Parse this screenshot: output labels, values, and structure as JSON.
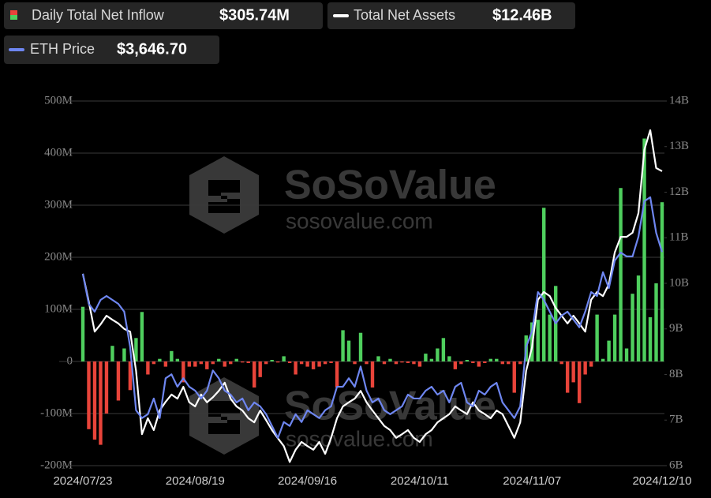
{
  "chart_data": {
    "type": "bar",
    "watermark": [
      "SoSoValue",
      "sosovalue.com"
    ],
    "categories": [
      "2024/07/23",
      null,
      null,
      null,
      null,
      null,
      null,
      null,
      null,
      null,
      null,
      null,
      null,
      null,
      null,
      null,
      null,
      null,
      null,
      "2024/08/19",
      null,
      null,
      null,
      null,
      null,
      null,
      null,
      null,
      null,
      null,
      null,
      null,
      null,
      null,
      null,
      null,
      null,
      null,
      "2024/09/16",
      null,
      null,
      null,
      null,
      null,
      null,
      null,
      null,
      null,
      null,
      null,
      null,
      null,
      null,
      null,
      null,
      null,
      null,
      "2024/10/11",
      null,
      null,
      null,
      null,
      null,
      null,
      null,
      null,
      null,
      null,
      null,
      null,
      null,
      null,
      null,
      null,
      null,
      null,
      "2024/11/07",
      null,
      null,
      null,
      null,
      null,
      null,
      null,
      null,
      null,
      null,
      null,
      null,
      null,
      null,
      null,
      null,
      null,
      null,
      null,
      null,
      null,
      "2024/12/10"
    ],
    "series": [
      {
        "name": "Daily Total Net Inflow",
        "type": "bar",
        "latest_label": "$305.74M",
        "color": "#4fcf5e",
        "negative_color": "#e8443a",
        "values": [
          105,
          -130,
          -150,
          -160,
          -100,
          30,
          -75,
          25,
          -55,
          45,
          95,
          -25,
          -5,
          5,
          -10,
          20,
          5,
          -40,
          -10,
          -10,
          -5,
          -15,
          -5,
          5,
          -10,
          -5,
          5,
          -2,
          -3,
          -50,
          -30,
          -5,
          3,
          -2,
          10,
          -3,
          -25,
          -5,
          -10,
          -15,
          -10,
          -5,
          -3,
          -50,
          60,
          40,
          -5,
          55,
          -5,
          -50,
          10,
          -5,
          5,
          -5,
          -2,
          -3,
          -5,
          -10,
          15,
          5,
          25,
          45,
          10,
          -15,
          -5,
          3,
          -3,
          -10,
          -3,
          5,
          5,
          -5,
          -5,
          -60,
          -5,
          50,
          75,
          80,
          295,
          90,
          145,
          -5,
          -60,
          -40,
          -80,
          -25,
          -10,
          90,
          5,
          40,
          90,
          333,
          25,
          130,
          165,
          428,
          85,
          150,
          305.74
        ]
      },
      {
        "name": "Total Net Assets",
        "type": "line",
        "axis": "y2",
        "latest_label": "$12.46B",
        "color": "#ffffff",
        "values": [
          10.21,
          9.6,
          8.94,
          9.1,
          9.29,
          9.2,
          9.12,
          9.0,
          8.94,
          8.08,
          6.69,
          7.04,
          6.78,
          7.21,
          7.4,
          7.56,
          7.47,
          7.73,
          7.39,
          7.3,
          7.56,
          7.39,
          7.5,
          7.64,
          7.82,
          7.47,
          7.3,
          7.21,
          7.04,
          6.95,
          7.21,
          7.0,
          6.78,
          6.6,
          6.43,
          6.08,
          6.35,
          6.52,
          6.43,
          6.35,
          6.52,
          6.26,
          6.61,
          7.04,
          7.3,
          7.39,
          7.47,
          7.64,
          7.39,
          7.21,
          7.04,
          6.87,
          6.78,
          6.61,
          6.69,
          6.78,
          6.61,
          6.52,
          6.69,
          6.78,
          6.95,
          7.04,
          7.13,
          7.3,
          7.21,
          7.13,
          7.39,
          7.21,
          7.13,
          7.04,
          7.21,
          7.13,
          6.87,
          6.61,
          6.95,
          8.08,
          8.6,
          9.64,
          9.81,
          9.72,
          9.46,
          9.29,
          9.12,
          9.29,
          9.12,
          8.94,
          9.64,
          9.81,
          9.72,
          9.98,
          10.68,
          11.02,
          11.02,
          11.11,
          11.54,
          12.93,
          13.36,
          12.53,
          12.46
        ]
      },
      {
        "name": "ETH Price",
        "type": "line",
        "axis": "y3",
        "latest_label": "$3,646.70",
        "color": "#6e86f0",
        "values": [
          3480,
          3250,
          3190,
          3280,
          3310,
          3280,
          3250,
          3190,
          2920,
          2435,
          2375,
          2405,
          2525,
          2375,
          2680,
          2710,
          2615,
          2680,
          2615,
          2585,
          2525,
          2585,
          2740,
          2680,
          2585,
          2555,
          2495,
          2525,
          2435,
          2495,
          2465,
          2405,
          2315,
          2223,
          2345,
          2315,
          2405,
          2345,
          2435,
          2405,
          2375,
          2435,
          2465,
          2615,
          2615,
          2680,
          2615,
          2770,
          2585,
          2495,
          2525,
          2435,
          2405,
          2435,
          2465,
          2555,
          2525,
          2525,
          2585,
          2615,
          2555,
          2585,
          2495,
          2615,
          2645,
          2495,
          2465,
          2585,
          2555,
          2615,
          2645,
          2495,
          2435,
          2375,
          2465,
          2920,
          3040,
          3340,
          3280,
          3190,
          3100,
          3160,
          3190,
          3130,
          3070,
          3190,
          3340,
          3310,
          3492,
          3371,
          3582,
          3643,
          3613,
          3613,
          3764,
          4036,
          4066,
          3794,
          3646.7
        ]
      }
    ],
    "ylim": [
      -200,
      500
    ],
    "yticks": [
      {
        "value": -200,
        "label": "-200M"
      },
      {
        "value": -100,
        "label": "-100M"
      },
      0,
      {
        "value": 100,
        "label": "100M"
      },
      {
        "value": 200,
        "label": "200M"
      },
      {
        "value": 300,
        "label": "300M"
      },
      {
        "value": 400,
        "label": "400M"
      },
      {
        "value": 500,
        "label": "500M"
      }
    ],
    "y2lim": [
      6,
      14
    ],
    "y2ticks": [
      {
        "value": 6,
        "label": "6B"
      },
      {
        "value": 7,
        "label": "7B"
      },
      {
        "value": 8,
        "label": "8B"
      },
      {
        "value": 9,
        "label": "9B"
      },
      {
        "value": 10,
        "label": "10B"
      },
      {
        "value": 11,
        "label": "11B"
      },
      {
        "value": 12,
        "label": "12B"
      },
      {
        "value": 13,
        "label": "13B"
      },
      {
        "value": 14,
        "label": "14B"
      }
    ],
    "y3lim": [
      2011,
      4803
    ],
    "grid": true
  }
}
